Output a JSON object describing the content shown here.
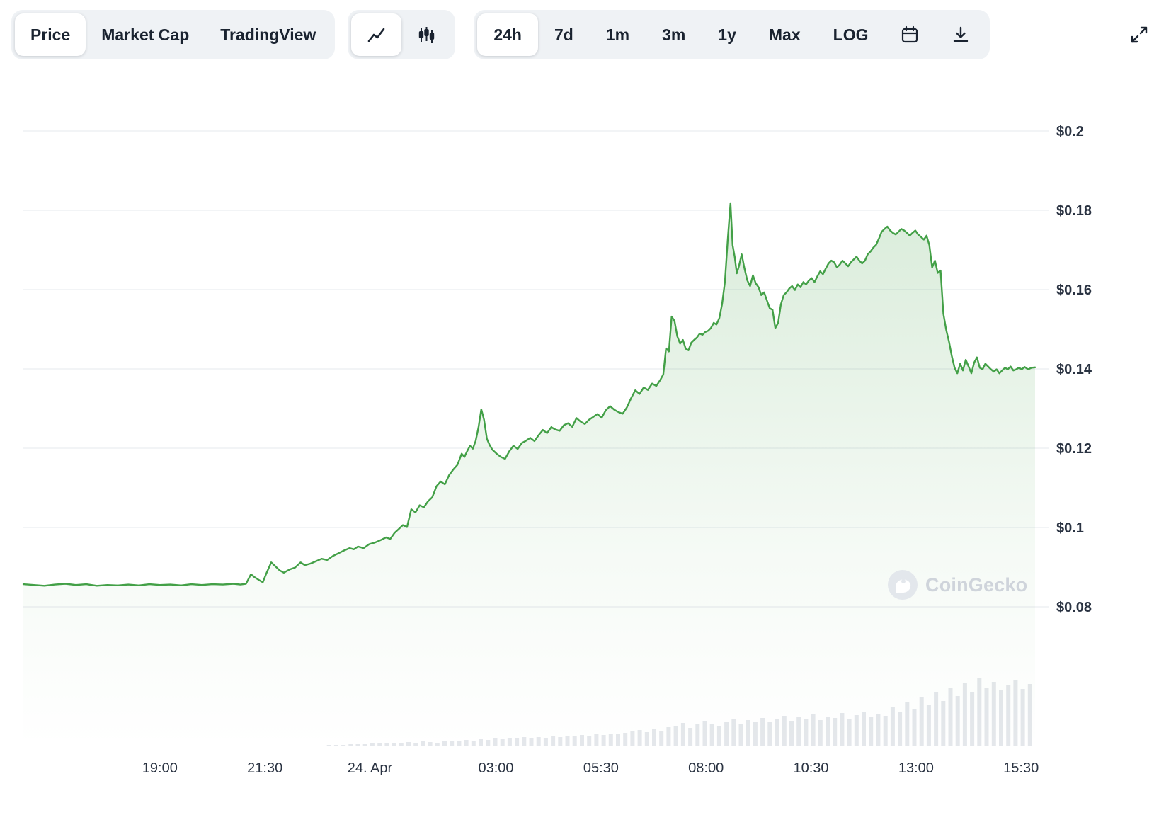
{
  "toolbar": {
    "chart_tabs": [
      {
        "label": "Price",
        "selected": true
      },
      {
        "label": "Market Cap",
        "selected": false
      },
      {
        "label": "TradingView",
        "selected": false
      }
    ],
    "style_toggle": [
      {
        "icon": "line-chart-icon",
        "selected": true
      },
      {
        "icon": "candlestick-icon",
        "selected": false
      }
    ],
    "range_tabs": [
      {
        "label": "24h",
        "selected": true
      },
      {
        "label": "7d",
        "selected": false
      },
      {
        "label": "1m",
        "selected": false
      },
      {
        "label": "3m",
        "selected": false
      },
      {
        "label": "1y",
        "selected": false
      },
      {
        "label": "Max",
        "selected": false
      },
      {
        "label": "LOG",
        "selected": false
      }
    ],
    "icon_buttons": [
      "calendar-icon",
      "download-icon",
      "expand-icon"
    ]
  },
  "watermark": {
    "text": "CoinGecko"
  },
  "colors": {
    "line_green": "#43a047",
    "grid": "#eef0f4",
    "volume": "#e4e7eb",
    "toolbar_pill_bg": "#eff2f5",
    "selected_pill_bg": "#ffffff",
    "text_dark": "#1a2330",
    "axis_label": "#2a3342",
    "watermark_gray": "#cfd4db"
  },
  "chart_data": {
    "type": "area",
    "title": "",
    "legend": [],
    "grid": true,
    "t_domain": [
      0,
      1445
    ],
    "ylim": [
      0.075,
      0.205
    ],
    "y_ticks": [
      {
        "value": 0.2,
        "label": "$0.2"
      },
      {
        "value": 0.18,
        "label": "$0.18"
      },
      {
        "value": 0.16,
        "label": "$0.16"
      },
      {
        "value": 0.14,
        "label": "$0.14"
      },
      {
        "value": 0.12,
        "label": "$0.12"
      },
      {
        "value": 0.1,
        "label": "$0.1"
      },
      {
        "value": 0.08,
        "label": "$0.08"
      }
    ],
    "x_ticks": [
      {
        "t": 195,
        "label": "19:00"
      },
      {
        "t": 345,
        "label": "21:30"
      },
      {
        "t": 495,
        "label": "24. Apr"
      },
      {
        "t": 675,
        "label": "03:00"
      },
      {
        "t": 825,
        "label": "05:30"
      },
      {
        "t": 975,
        "label": "08:00"
      },
      {
        "t": 1125,
        "label": "10:30"
      },
      {
        "t": 1275,
        "label": "13:00"
      },
      {
        "t": 1425,
        "label": "15:30"
      }
    ],
    "series_name": "price_usd_24h",
    "series": [
      [
        0,
        0.0857
      ],
      [
        15,
        0.0855
      ],
      [
        30,
        0.0853
      ],
      [
        45,
        0.0856
      ],
      [
        60,
        0.0858
      ],
      [
        75,
        0.0855
      ],
      [
        90,
        0.0857
      ],
      [
        105,
        0.0853
      ],
      [
        120,
        0.0855
      ],
      [
        135,
        0.0854
      ],
      [
        150,
        0.0856
      ],
      [
        165,
        0.0854
      ],
      [
        180,
        0.0857
      ],
      [
        195,
        0.0855
      ],
      [
        210,
        0.0856
      ],
      [
        225,
        0.0854
      ],
      [
        240,
        0.0857
      ],
      [
        255,
        0.0855
      ],
      [
        270,
        0.0857
      ],
      [
        285,
        0.0856
      ],
      [
        300,
        0.0858
      ],
      [
        310,
        0.0856
      ],
      [
        318,
        0.0858
      ],
      [
        325,
        0.0882
      ],
      [
        330,
        0.0875
      ],
      [
        336,
        0.0868
      ],
      [
        342,
        0.0862
      ],
      [
        348,
        0.0888
      ],
      [
        354,
        0.0912
      ],
      [
        360,
        0.0902
      ],
      [
        366,
        0.0892
      ],
      [
        372,
        0.0886
      ],
      [
        380,
        0.0894
      ],
      [
        388,
        0.0899
      ],
      [
        396,
        0.0912
      ],
      [
        402,
        0.0905
      ],
      [
        410,
        0.0909
      ],
      [
        418,
        0.0915
      ],
      [
        426,
        0.0921
      ],
      [
        434,
        0.0918
      ],
      [
        442,
        0.0928
      ],
      [
        450,
        0.0935
      ],
      [
        458,
        0.0942
      ],
      [
        466,
        0.0948
      ],
      [
        472,
        0.0945
      ],
      [
        478,
        0.0952
      ],
      [
        486,
        0.0948
      ],
      [
        494,
        0.0958
      ],
      [
        502,
        0.0962
      ],
      [
        510,
        0.0968
      ],
      [
        518,
        0.0975
      ],
      [
        524,
        0.0971
      ],
      [
        530,
        0.0986
      ],
      [
        536,
        0.0996
      ],
      [
        542,
        0.1006
      ],
      [
        548,
        0.1001
      ],
      [
        554,
        0.1046
      ],
      [
        560,
        0.1038
      ],
      [
        566,
        0.1056
      ],
      [
        572,
        0.1051
      ],
      [
        578,
        0.1066
      ],
      [
        584,
        0.1076
      ],
      [
        590,
        0.1104
      ],
      [
        596,
        0.1116
      ],
      [
        602,
        0.1109
      ],
      [
        608,
        0.1132
      ],
      [
        614,
        0.1146
      ],
      [
        620,
        0.1158
      ],
      [
        626,
        0.1186
      ],
      [
        630,
        0.1178
      ],
      [
        634,
        0.1193
      ],
      [
        638,
        0.1206
      ],
      [
        642,
        0.1199
      ],
      [
        646,
        0.1218
      ],
      [
        650,
        0.1252
      ],
      [
        654,
        0.1298
      ],
      [
        658,
        0.1272
      ],
      [
        662,
        0.1224
      ],
      [
        666,
        0.1208
      ],
      [
        670,
        0.1196
      ],
      [
        676,
        0.1186
      ],
      [
        682,
        0.1178
      ],
      [
        688,
        0.1173
      ],
      [
        694,
        0.1192
      ],
      [
        700,
        0.1206
      ],
      [
        706,
        0.1198
      ],
      [
        712,
        0.1213
      ],
      [
        718,
        0.1219
      ],
      [
        724,
        0.1226
      ],
      [
        730,
        0.1218
      ],
      [
        736,
        0.1233
      ],
      [
        742,
        0.1246
      ],
      [
        748,
        0.1238
      ],
      [
        754,
        0.1253
      ],
      [
        760,
        0.1247
      ],
      [
        766,
        0.1244
      ],
      [
        772,
        0.1258
      ],
      [
        778,
        0.1263
      ],
      [
        784,
        0.1254
      ],
      [
        790,
        0.1276
      ],
      [
        796,
        0.1267
      ],
      [
        802,
        0.1261
      ],
      [
        808,
        0.1272
      ],
      [
        814,
        0.1279
      ],
      [
        820,
        0.1286
      ],
      [
        826,
        0.1277
      ],
      [
        832,
        0.1296
      ],
      [
        838,
        0.1306
      ],
      [
        844,
        0.1297
      ],
      [
        850,
        0.1291
      ],
      [
        856,
        0.1287
      ],
      [
        862,
        0.1303
      ],
      [
        868,
        0.1326
      ],
      [
        874,
        0.1346
      ],
      [
        880,
        0.1337
      ],
      [
        886,
        0.1353
      ],
      [
        892,
        0.1347
      ],
      [
        898,
        0.1363
      ],
      [
        904,
        0.1357
      ],
      [
        910,
        0.1373
      ],
      [
        914,
        0.1386
      ],
      [
        918,
        0.1452
      ],
      [
        922,
        0.1444
      ],
      [
        926,
        0.1532
      ],
      [
        930,
        0.1521
      ],
      [
        934,
        0.1482
      ],
      [
        938,
        0.1464
      ],
      [
        942,
        0.1473
      ],
      [
        946,
        0.1451
      ],
      [
        950,
        0.1447
      ],
      [
        954,
        0.1466
      ],
      [
        958,
        0.1473
      ],
      [
        962,
        0.1479
      ],
      [
        966,
        0.1489
      ],
      [
        970,
        0.1486
      ],
      [
        974,
        0.1493
      ],
      [
        978,
        0.1496
      ],
      [
        982,
        0.1503
      ],
      [
        986,
        0.1516
      ],
      [
        990,
        0.1512
      ],
      [
        994,
        0.1528
      ],
      [
        998,
        0.1563
      ],
      [
        1002,
        0.1619
      ],
      [
        1006,
        0.1726
      ],
      [
        1010,
        0.1818
      ],
      [
        1013,
        0.1712
      ],
      [
        1016,
        0.1682
      ],
      [
        1019,
        0.1641
      ],
      [
        1022,
        0.1659
      ],
      [
        1026,
        0.1689
      ],
      [
        1030,
        0.1653
      ],
      [
        1034,
        0.1623
      ],
      [
        1038,
        0.1609
      ],
      [
        1042,
        0.1636
      ],
      [
        1046,
        0.1616
      ],
      [
        1050,
        0.1606
      ],
      [
        1054,
        0.1586
      ],
      [
        1058,
        0.1593
      ],
      [
        1062,
        0.1573
      ],
      [
        1066,
        0.1553
      ],
      [
        1070,
        0.1549
      ],
      [
        1074,
        0.1503
      ],
      [
        1078,
        0.1516
      ],
      [
        1082,
        0.1563
      ],
      [
        1086,
        0.1586
      ],
      [
        1090,
        0.1593
      ],
      [
        1094,
        0.1603
      ],
      [
        1098,
        0.1609
      ],
      [
        1102,
        0.1599
      ],
      [
        1106,
        0.1613
      ],
      [
        1110,
        0.1606
      ],
      [
        1114,
        0.1619
      ],
      [
        1118,
        0.1613
      ],
      [
        1122,
        0.1623
      ],
      [
        1126,
        0.1629
      ],
      [
        1130,
        0.1619
      ],
      [
        1134,
        0.1633
      ],
      [
        1138,
        0.1646
      ],
      [
        1142,
        0.1639
      ],
      [
        1146,
        0.1653
      ],
      [
        1150,
        0.1666
      ],
      [
        1154,
        0.1673
      ],
      [
        1158,
        0.1669
      ],
      [
        1162,
        0.1656
      ],
      [
        1166,
        0.1663
      ],
      [
        1170,
        0.1673
      ],
      [
        1174,
        0.1666
      ],
      [
        1178,
        0.1659
      ],
      [
        1182,
        0.1669
      ],
      [
        1186,
        0.1676
      ],
      [
        1190,
        0.1683
      ],
      [
        1194,
        0.1673
      ],
      [
        1198,
        0.1666
      ],
      [
        1202,
        0.1673
      ],
      [
        1206,
        0.1689
      ],
      [
        1210,
        0.1696
      ],
      [
        1214,
        0.1706
      ],
      [
        1218,
        0.1713
      ],
      [
        1222,
        0.1729
      ],
      [
        1226,
        0.1746
      ],
      [
        1230,
        0.1753
      ],
      [
        1234,
        0.1759
      ],
      [
        1238,
        0.1749
      ],
      [
        1242,
        0.1743
      ],
      [
        1246,
        0.1739
      ],
      [
        1250,
        0.1746
      ],
      [
        1254,
        0.1753
      ],
      [
        1258,
        0.1749
      ],
      [
        1262,
        0.1743
      ],
      [
        1266,
        0.1736
      ],
      [
        1270,
        0.1743
      ],
      [
        1274,
        0.1749
      ],
      [
        1278,
        0.1739
      ],
      [
        1282,
        0.1733
      ],
      [
        1286,
        0.1726
      ],
      [
        1290,
        0.1736
      ],
      [
        1294,
        0.1712
      ],
      [
        1298,
        0.1656
      ],
      [
        1302,
        0.1673
      ],
      [
        1306,
        0.1642
      ],
      [
        1310,
        0.1648
      ],
      [
        1314,
        0.1539
      ],
      [
        1318,
        0.1499
      ],
      [
        1322,
        0.1469
      ],
      [
        1326,
        0.1433
      ],
      [
        1330,
        0.1403
      ],
      [
        1334,
        0.1389
      ],
      [
        1338,
        0.1413
      ],
      [
        1342,
        0.1396
      ],
      [
        1346,
        0.1423
      ],
      [
        1350,
        0.1406
      ],
      [
        1354,
        0.1389
      ],
      [
        1358,
        0.1416
      ],
      [
        1362,
        0.1429
      ],
      [
        1366,
        0.1403
      ],
      [
        1370,
        0.1399
      ],
      [
        1374,
        0.1413
      ],
      [
        1378,
        0.1406
      ],
      [
        1382,
        0.1399
      ],
      [
        1386,
        0.1393
      ],
      [
        1390,
        0.1399
      ],
      [
        1394,
        0.1389
      ],
      [
        1398,
        0.1396
      ],
      [
        1402,
        0.1403
      ],
      [
        1406,
        0.1399
      ],
      [
        1410,
        0.1406
      ],
      [
        1414,
        0.1396
      ],
      [
        1418,
        0.1399
      ],
      [
        1422,
        0.1403
      ],
      [
        1426,
        0.1399
      ],
      [
        1430,
        0.1405
      ],
      [
        1435,
        0.1399
      ],
      [
        1440,
        0.1403
      ],
      [
        1445,
        0.1404
      ]
    ],
    "volume": [
      0,
      0,
      0,
      0,
      0,
      0,
      0,
      0,
      0,
      0,
      0,
      0,
      0,
      0,
      0,
      0,
      0,
      0,
      0,
      0,
      0,
      0,
      0,
      0,
      0,
      0,
      0,
      0,
      0,
      0,
      0,
      0,
      0,
      0,
      0,
      0,
      0,
      0,
      0,
      0,
      0,
      0,
      1,
      1,
      1,
      2,
      2,
      2,
      3,
      3,
      3,
      4,
      3,
      5,
      4,
      6,
      5,
      4,
      6,
      7,
      6,
      8,
      7,
      9,
      8,
      10,
      9,
      11,
      10,
      12,
      10,
      12,
      11,
      13,
      12,
      14,
      13,
      15,
      14,
      16,
      15,
      17,
      16,
      18,
      20,
      22,
      19,
      24,
      21,
      26,
      28,
      32,
      25,
      30,
      35,
      30,
      28,
      33,
      38,
      31,
      36,
      34,
      39,
      33,
      37,
      42,
      35,
      40,
      38,
      44,
      36,
      41,
      39,
      46,
      38,
      43,
      47,
      40,
      45,
      42,
      55,
      48,
      62,
      52,
      68,
      58,
      75,
      63,
      82,
      70,
      88,
      76,
      95,
      82,
      90,
      78,
      85,
      92,
      80,
      87
    ]
  }
}
